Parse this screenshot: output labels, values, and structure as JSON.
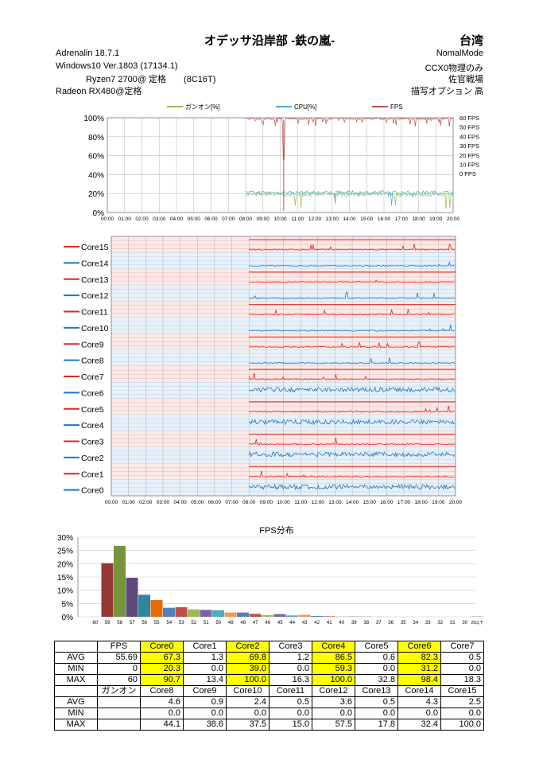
{
  "header": {
    "title": "オデッサ沿岸部 -鉄の嵐-",
    "region": "台湾",
    "left_lines": [
      "Adrenalin 18.7.1",
      "Windows10 Ver.1803 (17134.1)",
      "Ryzen7 2700@ 定格　　(8C16T)",
      "Radeon RX480@定格"
    ],
    "right_lines": [
      "NomalMode",
      "CCX0物理のみ",
      "佐官戦場",
      "描写オプション 高"
    ]
  },
  "colors": {
    "gunon": "#9bbb59",
    "cpu": "#4bacc6",
    "fps": "#c0504d",
    "core_odd": "#d92a20",
    "core_even": "#1f77c4"
  },
  "chart_data": [
    {
      "type": "line",
      "title": "",
      "legend": [
        "ガンオン[%]",
        "CPU[%]",
        "FPS"
      ],
      "legend_position": "top",
      "y_ticks": [
        "100%",
        "80%",
        "60%",
        "40%",
        "20%",
        "0%"
      ],
      "y2_ticks": [
        "60 FPS",
        "50 FPS",
        "40 FPS",
        "30 FPS",
        "20 FPS",
        "10 FPS",
        "0 FPS"
      ],
      "x_ticks": [
        "00:00",
        "01:00",
        "02:00",
        "03:00",
        "04:00",
        "05:00",
        "06:00",
        "07:00",
        "08:00",
        "09:00",
        "10:00",
        "11:00",
        "12:00",
        "13:00",
        "14:00",
        "15:00",
        "16:00",
        "17:00",
        "18:00",
        "19:00",
        "20:00"
      ],
      "data_start": "08:00",
      "data_end": "20:00",
      "series": [
        {
          "name": "ガンオン[%]",
          "approx_level": 19
        },
        {
          "name": "CPU[%]",
          "approx_level": 21
        },
        {
          "name": "FPS",
          "approx_level": 59
        }
      ],
      "grid": true
    },
    {
      "type": "line",
      "title": "",
      "legend": [
        "Core15",
        "Core14",
        "Core13",
        "Core12",
        "Core11",
        "Core10",
        "Core9",
        "Core8",
        "Core7",
        "Core6",
        "Core5",
        "Core4",
        "Core3",
        "Core2",
        "Core1",
        "Core0"
      ],
      "legend_position": "left",
      "x_ticks": [
        "00:00",
        "01:00",
        "02:00",
        "03:00",
        "04:00",
        "05:00",
        "06:00",
        "07:00",
        "08:00",
        "09:00",
        "10:00",
        "11:00",
        "12:00",
        "13:00",
        "14:00",
        "15:00",
        "16:00",
        "17:00",
        "18:00",
        "19:00",
        "20:00"
      ],
      "data_start": "08:00",
      "grid": true
    },
    {
      "type": "bar",
      "title": "FPS分布",
      "y_ticks": [
        "30%",
        "25%",
        "20%",
        "15%",
        "10%",
        "5%",
        "0%"
      ],
      "ylim": [
        0,
        30
      ],
      "categories": [
        "60",
        "59",
        "58",
        "57",
        "56",
        "55",
        "54",
        "53",
        "52",
        "51",
        "50",
        "49",
        "48",
        "47",
        "46",
        "45",
        "44",
        "43",
        "42",
        "41",
        "40",
        "39",
        "38",
        "37",
        "36",
        "35",
        "34",
        "33",
        "32",
        "31",
        "30",
        "29以下"
      ],
      "values": [
        0,
        20.2,
        26.7,
        14.7,
        8.3,
        6.3,
        3.4,
        3.6,
        2.8,
        2.6,
        2.5,
        1.6,
        1.6,
        1.1,
        0.6,
        1.0,
        0.5,
        0.7,
        0.3,
        0.2,
        0.1,
        0.1,
        0.1,
        0.05,
        0,
        0,
        0,
        0,
        0,
        0,
        0,
        0.1
      ],
      "bar_colors": [
        "#4f81bd",
        "#953735",
        "#77933c",
        "#5f497a",
        "#31859c",
        "#e46c0a",
        "#4f81bd",
        "#c0504d",
        "#9bbb59",
        "#8064a2",
        "#4bacc6",
        "#f79646",
        "#4f81bd",
        "#c0504d",
        "#9bbb59",
        "#8064a2",
        "#4bacc6",
        "#f79646",
        "#4f81bd",
        "#c0504d",
        "#9bbb59",
        "#8064a2",
        "#4bacc6",
        "#f79646",
        "#4f81bd",
        "#c0504d",
        "#9bbb59",
        "#8064a2",
        "#4bacc6",
        "#f79646",
        "#4f81bd",
        "#c0504d"
      ]
    }
  ],
  "stats_table": {
    "top_header": [
      "",
      "FPS",
      "Core0",
      "Core1",
      "Core2",
      "Core3",
      "Core4",
      "Core5",
      "Core6",
      "Core7"
    ],
    "top_rows": [
      {
        "label": "AVG",
        "values": [
          "55.69",
          "67.3",
          "1.3",
          "69.8",
          "1.2",
          "86.5",
          "0.6",
          "82.3",
          "0.5"
        ]
      },
      {
        "label": "MIN",
        "values": [
          "0",
          "20.3",
          "0.0",
          "39.0",
          "0.0",
          "59.3",
          "0.0",
          "31.2",
          "0.0"
        ]
      },
      {
        "label": "MAX",
        "values": [
          "60",
          "90.7",
          "13.4",
          "100.0",
          "16.3",
          "100.0",
          "32.8",
          "98.4",
          "18.3"
        ]
      }
    ],
    "bottom_header": [
      "",
      "ガンオン",
      "Core8",
      "Core9",
      "Core10",
      "Core11",
      "Core12",
      "Core13",
      "Core14",
      "Core15"
    ],
    "bottom_rows": [
      {
        "label": "AVG",
        "values": [
          "",
          "4.6",
          "0.9",
          "2.4",
          "0.5",
          "3.6",
          "0.5",
          "4.3",
          "2.5"
        ]
      },
      {
        "label": "MIN",
        "values": [
          "",
          "0.0",
          "0.0",
          "0.0",
          "0.0",
          "0.0",
          "0.0",
          "0.0",
          "0.0"
        ]
      },
      {
        "label": "MAX",
        "values": [
          "",
          "44.1",
          "38.6",
          "37.5",
          "15.0",
          "57.5",
          "17.8",
          "32.4",
          "100.0"
        ]
      }
    ],
    "highlight_cols": [
      1,
      3,
      5,
      7
    ]
  }
}
